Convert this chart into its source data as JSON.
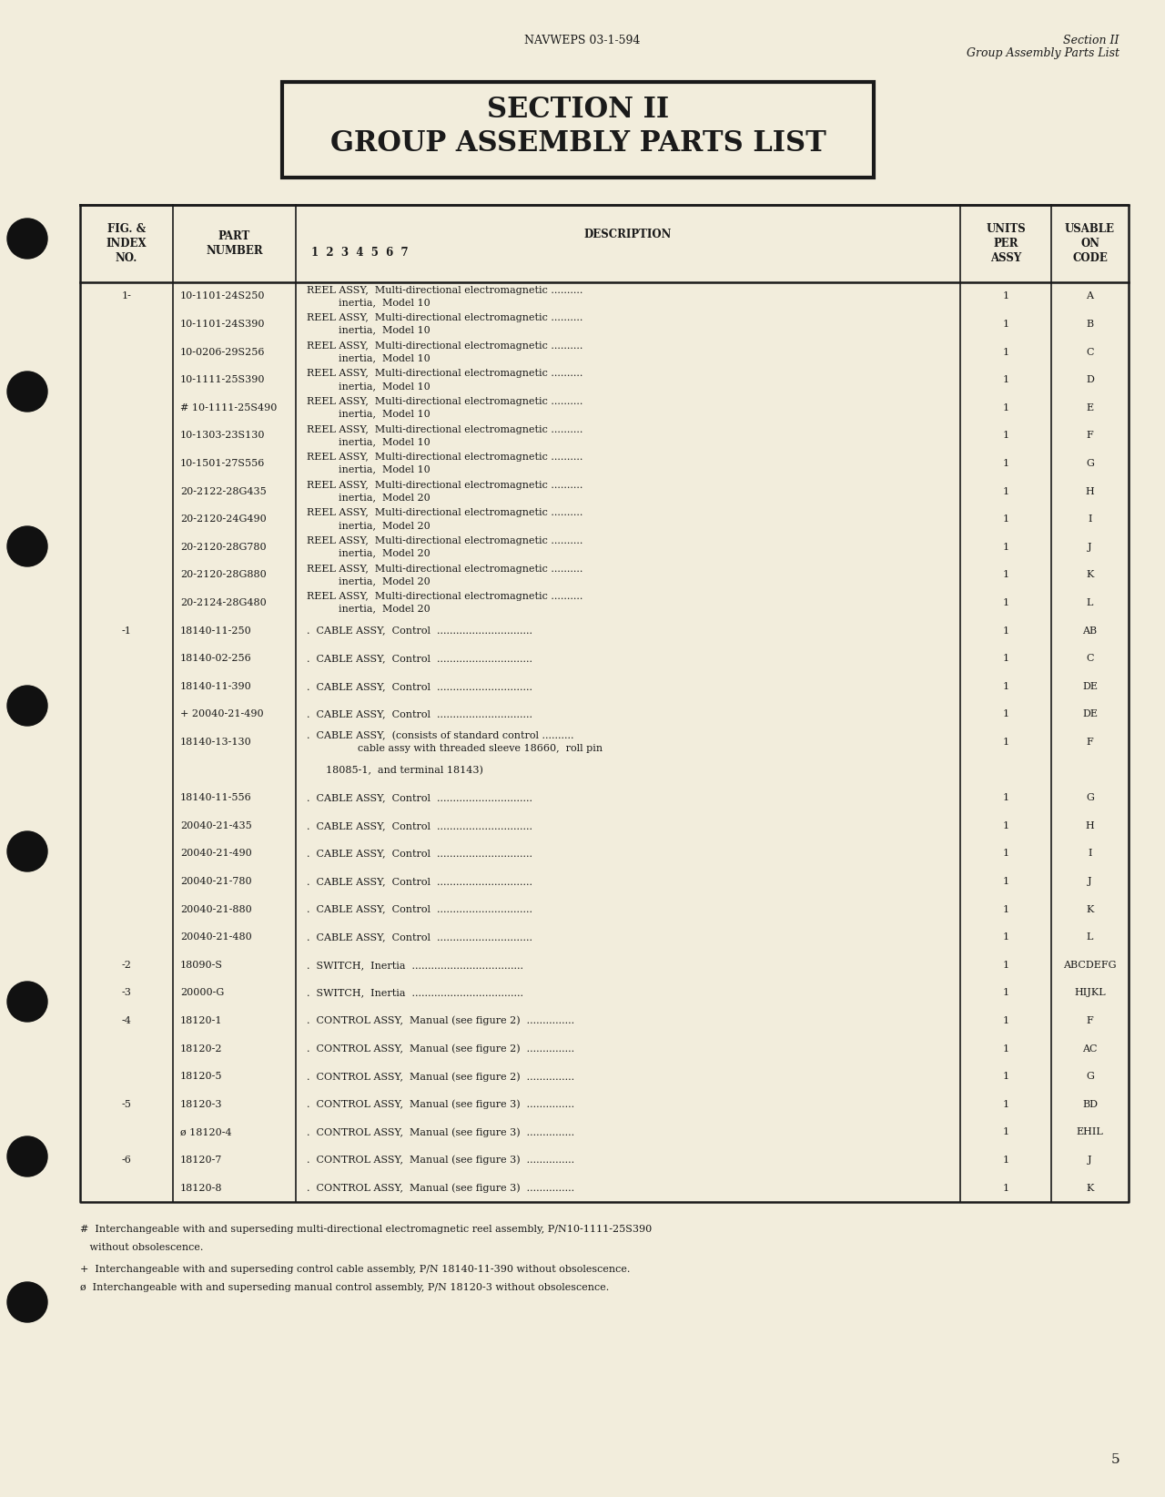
{
  "bg_color": "#f2eddc",
  "header_left": "NAVWEPS 03-1-594",
  "header_right_line1": "Section II",
  "header_right_line2": "Group Assembly Parts List",
  "section_title_line1": "SECTION II",
  "section_title_line2": "GROUP ASSEMBLY PARTS LIST",
  "table_rows": [
    [
      "1-",
      "10-1101-24S250",
      "REEL ASSY,  Multi-directional electromagnetic ..........",
      "inertia,  Model 10",
      "1",
      "A"
    ],
    [
      "",
      "10-1101-24S390",
      "REEL ASSY,  Multi-directional electromagnetic ..........",
      "inertia,  Model 10",
      "1",
      "B"
    ],
    [
      "",
      "10-0206-29S256",
      "REEL ASSY,  Multi-directional electromagnetic ..........",
      "inertia,  Model 10",
      "1",
      "C"
    ],
    [
      "",
      "10-1111-25S390",
      "REEL ASSY,  Multi-directional electromagnetic ..........",
      "inertia,  Model 10",
      "1",
      "D"
    ],
    [
      "",
      "# 10-1111-25S490",
      "REEL ASSY,  Multi-directional electromagnetic ..........",
      "inertia,  Model 10",
      "1",
      "E"
    ],
    [
      "",
      "10-1303-23S130",
      "REEL ASSY,  Multi-directional electromagnetic ..........",
      "inertia,  Model 10",
      "1",
      "F"
    ],
    [
      "",
      "10-1501-27S556",
      "REEL ASSY,  Multi-directional electromagnetic ..........",
      "inertia,  Model 10",
      "1",
      "G"
    ],
    [
      "",
      "20-2122-28G435",
      "REEL ASSY,  Multi-directional electromagnetic ..........",
      "inertia,  Model 20",
      "1",
      "H"
    ],
    [
      "",
      "20-2120-24G490",
      "REEL ASSY,  Multi-directional electromagnetic ..........",
      "inertia,  Model 20",
      "1",
      "I"
    ],
    [
      "",
      "20-2120-28G780",
      "REEL ASSY,  Multi-directional electromagnetic ..........",
      "inertia,  Model 20",
      "1",
      "J"
    ],
    [
      "",
      "20-2120-28G880",
      "REEL ASSY,  Multi-directional electromagnetic ..........",
      "inertia,  Model 20",
      "1",
      "K"
    ],
    [
      "",
      "20-2124-28G480",
      "REEL ASSY,  Multi-directional electromagnetic ..........",
      "inertia,  Model 20",
      "1",
      "L"
    ],
    [
      "-1",
      "18140-11-250",
      ".  CABLE ASSY,  Control  ..............................",
      "",
      "1",
      "AB"
    ],
    [
      "",
      "18140-02-256",
      ".  CABLE ASSY,  Control  ..............................",
      "",
      "1",
      "C"
    ],
    [
      "",
      "18140-11-390",
      ".  CABLE ASSY,  Control  ..............................",
      "",
      "1",
      "DE"
    ],
    [
      "",
      "+ 20040-21-490",
      ".  CABLE ASSY,  Control  ..............................",
      "",
      "1",
      "DE"
    ],
    [
      "",
      "18140-13-130",
      ".  CABLE ASSY,  (consists of standard control ..........",
      "      cable assy with threaded sleeve 18660,  roll pin",
      "1",
      "F"
    ],
    [
      "",
      "",
      "      18085-1,  and terminal 18143)",
      "",
      "",
      ""
    ],
    [
      "",
      "18140-11-556",
      ".  CABLE ASSY,  Control  ..............................",
      "",
      "1",
      "G"
    ],
    [
      "",
      "20040-21-435",
      ".  CABLE ASSY,  Control  ..............................",
      "",
      "1",
      "H"
    ],
    [
      "",
      "20040-21-490",
      ".  CABLE ASSY,  Control  ..............................",
      "",
      "1",
      "I"
    ],
    [
      "",
      "20040-21-780",
      ".  CABLE ASSY,  Control  ..............................",
      "",
      "1",
      "J"
    ],
    [
      "",
      "20040-21-880",
      ".  CABLE ASSY,  Control  ..............................",
      "",
      "1",
      "K"
    ],
    [
      "",
      "20040-21-480",
      ".  CABLE ASSY,  Control  ..............................",
      "",
      "1",
      "L"
    ],
    [
      "-2",
      "18090-S",
      ".  SWITCH,  Inertia  ...................................",
      "",
      "1",
      "ABCDEFG"
    ],
    [
      "-3",
      "20000-G",
      ".  SWITCH,  Inertia  ...................................",
      "",
      "1",
      "HIJKL"
    ],
    [
      "-4",
      "18120-1",
      ".  CONTROL ASSY,  Manual (see figure 2)  ...............",
      "",
      "1",
      "F"
    ],
    [
      "",
      "18120-2",
      ".  CONTROL ASSY,  Manual (see figure 2)  ...............",
      "",
      "1",
      "AC"
    ],
    [
      "",
      "18120-5",
      ".  CONTROL ASSY,  Manual (see figure 2)  ...............",
      "",
      "1",
      "G"
    ],
    [
      "-5",
      "18120-3",
      ".  CONTROL ASSY,  Manual (see figure 3)  ...............",
      "",
      "1",
      "BD"
    ],
    [
      "",
      "ø 18120-4",
      ".  CONTROL ASSY,  Manual (see figure 3)  ...............",
      "",
      "1",
      "EHIL"
    ],
    [
      "-6",
      "18120-7",
      ".  CONTROL ASSY,  Manual (see figure 3)  ...............",
      "",
      "1",
      "J"
    ],
    [
      "",
      "18120-8",
      ".  CONTROL ASSY,  Manual (see figure 3)  ...............",
      "",
      "1",
      "K"
    ]
  ],
  "footnotes": [
    "#  Interchangeable with and superseding multi-directional electromagnetic reel assembly, P/N10-1111-25S390",
    "   without obsolescence.",
    "+  Interchangeable with and superseding control cable assembly, P/N 18140-11-390 without obsolescence.",
    "ø  Interchangeable with and superseding manual control assembly, P/N 18120-3 without obsolescence."
  ],
  "page_number": "5"
}
